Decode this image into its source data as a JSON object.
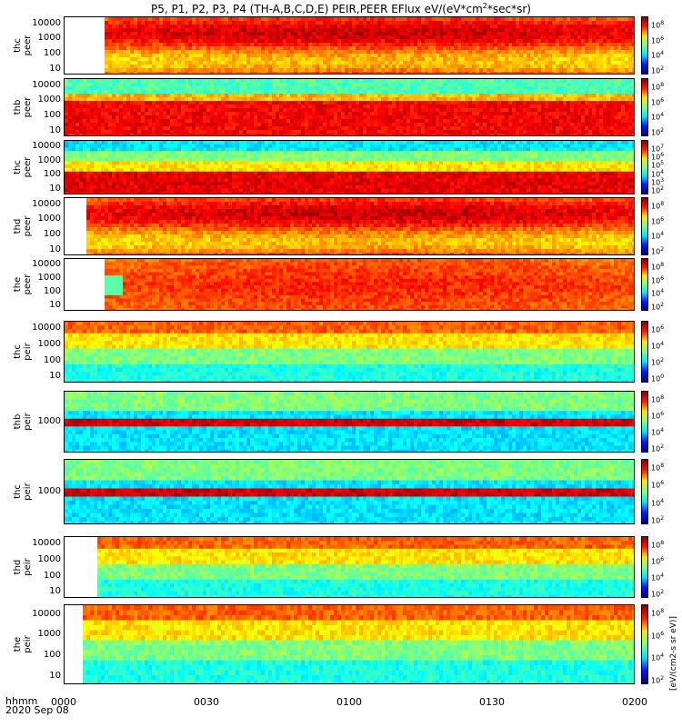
{
  "chart_data": {
    "type": "heatmap",
    "title": "P5, P1, P2, P3, P4 (TH-A,B,C,D,E) PEIR,PEER EFlux eV/(eV*cm^2*sec*sr)",
    "title_parts": {
      "pre": "P5, P1, P2, P3, P4 (TH-A,B,C,D,E) PEIR,PEER EFlux eV/(eV*cm",
      "sup": "2",
      "post": "*sec*sr)"
    },
    "xlabel_line1": "hhmm",
    "xlabel_line2": "2020 Sep 08",
    "x_ticks": [
      "0000",
      "0030",
      "0100",
      "0130",
      "0200"
    ],
    "colorbar_unit": "[eV/(cm2-s sr eV)]",
    "panels": [
      {
        "label": "thc\npeer",
        "y_ticks": [
          "10000",
          "1000",
          "100",
          "10"
        ],
        "cbar_ticks": [
          "8",
          "6",
          "4",
          "2"
        ]
      },
      {
        "label": "thb\npeer",
        "y_ticks": [
          "10000",
          "1000",
          "100",
          "10"
        ],
        "cbar_ticks": [
          "8",
          "6",
          "4",
          "2"
        ]
      },
      {
        "label": "thc\npeer",
        "y_ticks": [
          "10000",
          "1000",
          "100",
          "10"
        ],
        "cbar_ticks": [
          "7",
          "6",
          "5",
          "4",
          "3",
          "2"
        ]
      },
      {
        "label": "thd\npeer",
        "y_ticks": [
          "10000",
          "1000",
          "100",
          "10"
        ],
        "cbar_ticks": [
          "8",
          "6",
          "4",
          "2"
        ]
      },
      {
        "label": "the\npeer",
        "y_ticks": [
          "10000",
          "1000",
          "100",
          "10"
        ],
        "cbar_ticks": [
          "8",
          "6",
          "4",
          "2"
        ]
      },
      {
        "label": "thc\npeir",
        "y_ticks": [
          "10000",
          "1000",
          "100",
          "10"
        ],
        "cbar_ticks": [
          "6",
          "4",
          "2",
          "0"
        ]
      },
      {
        "label": "thb\npeir",
        "y_ticks": [
          "1000"
        ],
        "cbar_ticks": [
          "8",
          "6",
          "4",
          "2"
        ]
      },
      {
        "label": "thc\npeir",
        "y_ticks": [
          "1000"
        ],
        "cbar_ticks": [
          "8",
          "6",
          "4",
          "2"
        ]
      },
      {
        "label": "thd\npeir",
        "y_ticks": [
          "10000",
          "1000",
          "100",
          "10"
        ],
        "cbar_ticks": [
          "8",
          "6",
          "4",
          "2"
        ]
      },
      {
        "label": "the\npeir",
        "y_ticks": [
          "10000",
          "1000",
          "100",
          "10"
        ],
        "cbar_ticks": [
          "8",
          "6",
          "4",
          "2"
        ]
      }
    ]
  }
}
